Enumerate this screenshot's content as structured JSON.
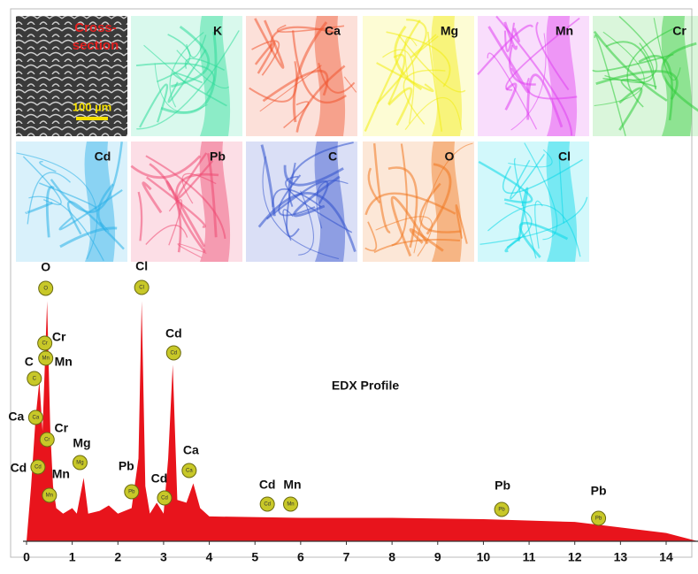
{
  "maps": [
    {
      "label_lines": [
        "Cross-",
        "section"
      ],
      "scale_bar": "100 µm",
      "color": "#777777"
    },
    {
      "label": "K",
      "color": "#2fdc9a"
    },
    {
      "label": "Ca",
      "color": "#f0552f"
    },
    {
      "label": "Mg",
      "color": "#f2ec10"
    },
    {
      "label": "Mn",
      "color": "#e040f0"
    },
    {
      "label": "Cr",
      "color": "#30cc3a"
    },
    {
      "label": "Cd",
      "color": "#2ab0e8"
    },
    {
      "label": "Pb",
      "color": "#ee4a72"
    },
    {
      "label": "C",
      "color": "#3050cc"
    },
    {
      "label": "O",
      "color": "#f07820"
    },
    {
      "label": "Cl",
      "color": "#08d8e8"
    }
  ],
  "chart_data": {
    "type": "area",
    "title": "EDX Profile",
    "color": "#e8141c",
    "x": [
      0,
      0.1,
      0.2,
      0.28,
      0.35,
      0.45,
      0.52,
      0.58,
      0.65,
      0.8,
      1.0,
      1.1,
      1.25,
      1.35,
      1.6,
      1.8,
      2.0,
      2.3,
      2.45,
      2.52,
      2.6,
      2.7,
      2.85,
      3.0,
      3.1,
      3.2,
      3.3,
      3.5,
      3.65,
      3.8,
      4.0,
      6.0,
      8.0,
      10.0,
      12.0,
      13.0,
      14.0,
      14.7
    ],
    "values": [
      0,
      20,
      45,
      58,
      40,
      87,
      40,
      20,
      12,
      10,
      12,
      10,
      23,
      10,
      11,
      13,
      10,
      12,
      30,
      87,
      20,
      10,
      14,
      10,
      30,
      64,
      15,
      14,
      21,
      12,
      9,
      8.5,
      8.5,
      8,
      7,
      5,
      3,
      0
    ],
    "xlim": [
      0,
      14.7
    ],
    "ylim": [
      0,
      100
    ],
    "xticks": [
      0,
      1,
      2,
      3,
      4,
      5,
      6,
      7,
      8,
      9,
      10,
      11,
      12,
      13,
      14
    ],
    "annotations": [
      {
        "label": "O",
        "x": 0.42
      },
      {
        "label": "Cr",
        "x": 0.4
      },
      {
        "label": "Mn",
        "x": 0.42
      },
      {
        "label": "C",
        "x": 0.17
      },
      {
        "label": "Ca",
        "x": 0.2
      },
      {
        "label": "Cr",
        "x": 0.45
      },
      {
        "label": "Mg",
        "x": 1.17
      },
      {
        "label": "Cd",
        "x": 0.25
      },
      {
        "label": "Mn",
        "x": 0.5
      },
      {
        "label": "Pb",
        "x": 2.3
      },
      {
        "label": "Cl",
        "x": 2.52
      },
      {
        "label": "Cd",
        "x": 3.22
      },
      {
        "label": "Cd",
        "x": 3.02
      },
      {
        "label": "Ca",
        "x": 3.56
      },
      {
        "label": "Cd",
        "x": 5.27
      },
      {
        "label": "Mn",
        "x": 5.78
      },
      {
        "label": "Pb",
        "x": 10.4
      },
      {
        "label": "Pb",
        "x": 12.52
      }
    ]
  }
}
